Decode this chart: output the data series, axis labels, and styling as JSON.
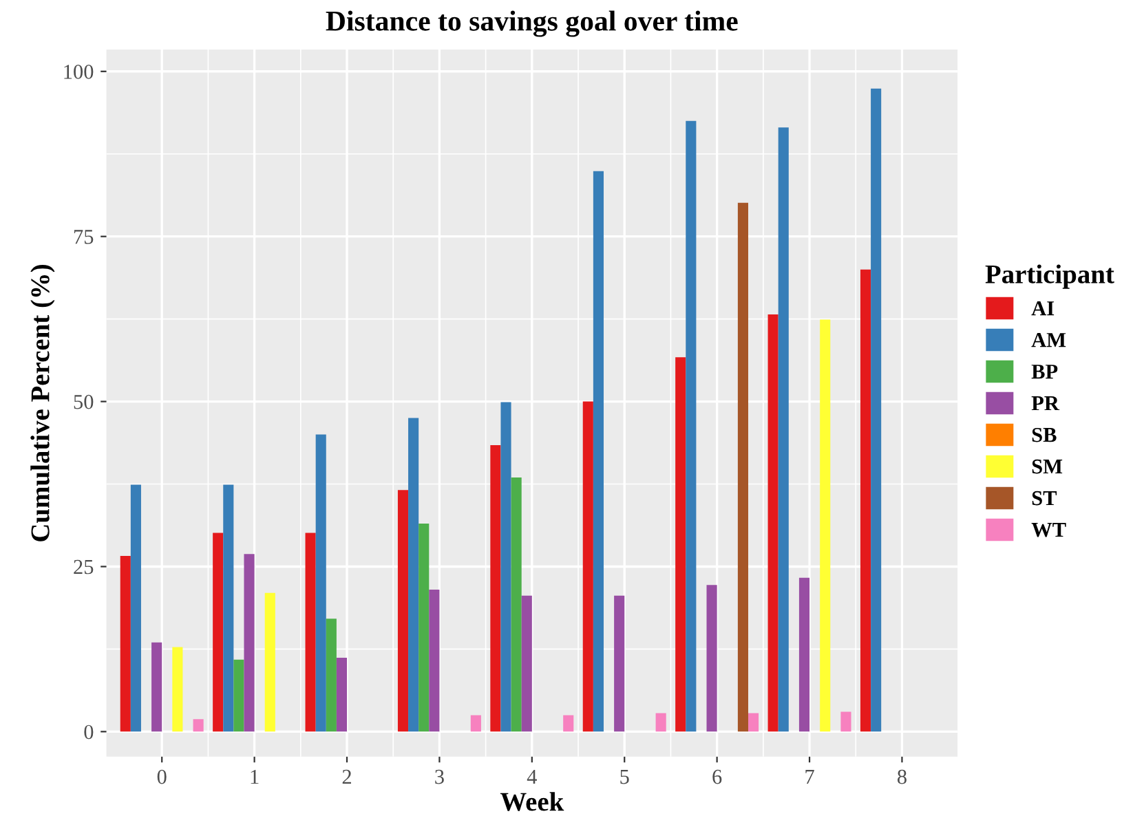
{
  "chart_data": {
    "type": "bar",
    "title": "Distance to savings goal over time",
    "xlabel": "Week",
    "ylabel": "Cumulative Percent (%)",
    "legend_title": "Participant",
    "x": [
      0,
      1,
      2,
      3,
      4,
      5,
      6,
      7,
      8
    ],
    "series": [
      {
        "name": "AI",
        "color": "#e41a1c",
        "values": [
          26.6,
          30.1,
          30.1,
          36.6,
          43.4,
          50.0,
          56.7,
          63.2,
          70.0
        ]
      },
      {
        "name": "AM",
        "color": "#377eb8",
        "values": [
          37.4,
          37.4,
          45.0,
          47.5,
          49.9,
          84.9,
          92.5,
          91.5,
          97.4
        ]
      },
      {
        "name": "BP",
        "color": "#4daf4a",
        "values": [
          null,
          10.9,
          17.1,
          31.5,
          38.5,
          null,
          null,
          null,
          null
        ]
      },
      {
        "name": "PR",
        "color": "#984ea3",
        "values": [
          13.5,
          26.9,
          11.2,
          21.5,
          20.6,
          20.6,
          22.2,
          23.3,
          null
        ]
      },
      {
        "name": "SB",
        "color": "#ff7f00",
        "values": [
          null,
          null,
          null,
          null,
          null,
          null,
          null,
          null,
          null
        ]
      },
      {
        "name": "SM",
        "color": "#ffff33",
        "values": [
          12.8,
          21.0,
          null,
          null,
          null,
          null,
          null,
          62.4,
          null
        ]
      },
      {
        "name": "ST",
        "color": "#a65628",
        "values": [
          null,
          null,
          null,
          null,
          null,
          null,
          80.1,
          null,
          null
        ]
      },
      {
        "name": "WT",
        "color": "#f781bf",
        "values": [
          1.9,
          null,
          null,
          2.5,
          2.5,
          2.8,
          2.8,
          3.0,
          null
        ]
      }
    ],
    "xlim": [
      -0.6,
      8.6
    ],
    "xticks": [
      0,
      1,
      2,
      3,
      4,
      5,
      6,
      7,
      8
    ],
    "ylim": [
      -3.8,
      103.3
    ],
    "yticks": [
      0,
      25,
      50,
      75,
      100
    ],
    "grid": true,
    "legend": "right"
  }
}
